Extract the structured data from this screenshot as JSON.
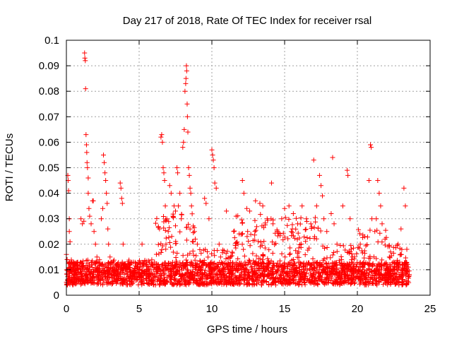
{
  "chart_data": {
    "type": "scatter",
    "title": "Day 217 of 2018, Rate Of TEC Index for receiver rsal",
    "xlabel": "GPS time / hours",
    "ylabel": "ROTI / TECUs",
    "xlim": [
      0,
      25
    ],
    "ylim": [
      0,
      0.1
    ],
    "xticks": [
      0,
      5,
      10,
      15,
      20,
      25
    ],
    "yticks": [
      0,
      0.01,
      0.02,
      0.03,
      0.04,
      0.05,
      0.06,
      0.07,
      0.08,
      0.09,
      0.1
    ],
    "xtick_labels": [
      "0",
      "5",
      "10",
      "15",
      "20",
      "25"
    ],
    "ytick_labels": [
      "0",
      "0.01",
      "0.02",
      "0.03",
      "0.04",
      "0.05",
      "0.06",
      "0.07",
      "0.08",
      "0.09",
      "0.1"
    ],
    "grid": true,
    "marker": "+",
    "color": "#ff0000",
    "series": [
      {
        "name": "ROTI",
        "points": [
          [
            0.0,
            0.016
          ],
          [
            0.05,
            0.014
          ],
          [
            0.1,
            0.047
          ],
          [
            0.12,
            0.045
          ],
          [
            0.15,
            0.041
          ],
          [
            0.2,
            0.03
          ],
          [
            0.2,
            0.025
          ],
          [
            0.25,
            0.021
          ],
          [
            0.3,
            0.011
          ],
          [
            0.5,
            0.009
          ],
          [
            0.8,
            0.01
          ],
          [
            1.0,
            0.03
          ],
          [
            1.1,
            0.028
          ],
          [
            1.2,
            0.029
          ],
          [
            1.25,
            0.095
          ],
          [
            1.27,
            0.093
          ],
          [
            1.3,
            0.092
          ],
          [
            1.32,
            0.081
          ],
          [
            1.35,
            0.063
          ],
          [
            1.38,
            0.059
          ],
          [
            1.4,
            0.056
          ],
          [
            1.42,
            0.052
          ],
          [
            1.45,
            0.05
          ],
          [
            1.5,
            0.046
          ],
          [
            1.5,
            0.04
          ],
          [
            1.55,
            0.034
          ],
          [
            1.6,
            0.031
          ],
          [
            1.7,
            0.028
          ],
          [
            1.8,
            0.037
          ],
          [
            1.85,
            0.037
          ],
          [
            1.9,
            0.025
          ],
          [
            2.0,
            0.02
          ],
          [
            2.1,
            0.015
          ],
          [
            2.4,
            0.03
          ],
          [
            2.5,
            0.034
          ],
          [
            2.55,
            0.055
          ],
          [
            2.6,
            0.052
          ],
          [
            2.65,
            0.048
          ],
          [
            2.7,
            0.045
          ],
          [
            2.75,
            0.04
          ],
          [
            2.8,
            0.036
          ],
          [
            2.85,
            0.026
          ],
          [
            2.9,
            0.02
          ],
          [
            3.0,
            0.015
          ],
          [
            3.2,
            0.01
          ],
          [
            3.6,
            0.011
          ],
          [
            3.7,
            0.044
          ],
          [
            3.75,
            0.042
          ],
          [
            3.8,
            0.038
          ],
          [
            3.85,
            0.036
          ],
          [
            3.9,
            0.02
          ],
          [
            4.0,
            0.012
          ],
          [
            4.6,
            0.013
          ],
          [
            5.2,
            0.02
          ],
          [
            5.5,
            0.01
          ],
          [
            6.0,
            0.01
          ],
          [
            6.4,
            0.026
          ],
          [
            6.5,
            0.062
          ],
          [
            6.55,
            0.063
          ],
          [
            6.6,
            0.06
          ],
          [
            6.65,
            0.05
          ],
          [
            6.7,
            0.048
          ],
          [
            6.75,
            0.045
          ],
          [
            6.8,
            0.035
          ],
          [
            6.9,
            0.03
          ],
          [
            7.0,
            0.025
          ],
          [
            7.1,
            0.043
          ],
          [
            7.2,
            0.04
          ],
          [
            7.4,
            0.035
          ],
          [
            7.5,
            0.033
          ],
          [
            7.6,
            0.05
          ],
          [
            7.65,
            0.048
          ],
          [
            7.7,
            0.035
          ],
          [
            7.8,
            0.04
          ],
          [
            7.9,
            0.03
          ],
          [
            8.0,
            0.058
          ],
          [
            8.05,
            0.06
          ],
          [
            8.1,
            0.065
          ],
          [
            8.15,
            0.08
          ],
          [
            8.2,
            0.083
          ],
          [
            8.22,
            0.085
          ],
          [
            8.25,
            0.09
          ],
          [
            8.27,
            0.088
          ],
          [
            8.3,
            0.075
          ],
          [
            8.32,
            0.07
          ],
          [
            8.35,
            0.064
          ],
          [
            8.4,
            0.05
          ],
          [
            8.45,
            0.047
          ],
          [
            8.5,
            0.042
          ],
          [
            8.55,
            0.04
          ],
          [
            8.6,
            0.035
          ],
          [
            8.8,
            0.025
          ],
          [
            9.0,
            0.02
          ],
          [
            9.5,
            0.038
          ],
          [
            9.6,
            0.036
          ],
          [
            9.8,
            0.03
          ],
          [
            10.0,
            0.057
          ],
          [
            10.05,
            0.055
          ],
          [
            10.1,
            0.053
          ],
          [
            10.15,
            0.05
          ],
          [
            10.2,
            0.044
          ],
          [
            10.3,
            0.042
          ],
          [
            10.5,
            0.02
          ],
          [
            10.6,
            0.015
          ],
          [
            11.0,
            0.033
          ],
          [
            11.5,
            0.025
          ],
          [
            11.8,
            0.02
          ],
          [
            12.1,
            0.045
          ],
          [
            12.2,
            0.04
          ],
          [
            12.4,
            0.034
          ],
          [
            12.6,
            0.033
          ],
          [
            13.0,
            0.037
          ],
          [
            13.3,
            0.036
          ],
          [
            13.5,
            0.035
          ],
          [
            13.8,
            0.03
          ],
          [
            14.1,
            0.044
          ],
          [
            14.2,
            0.028
          ],
          [
            14.5,
            0.025
          ],
          [
            14.8,
            0.03
          ],
          [
            15.0,
            0.034
          ],
          [
            15.3,
            0.035
          ],
          [
            15.6,
            0.032
          ],
          [
            15.9,
            0.028
          ],
          [
            16.2,
            0.035
          ],
          [
            16.5,
            0.03
          ],
          [
            16.8,
            0.028
          ],
          [
            17.0,
            0.053
          ],
          [
            17.2,
            0.035
          ],
          [
            17.4,
            0.047
          ],
          [
            17.5,
            0.043
          ],
          [
            17.6,
            0.039
          ],
          [
            17.7,
            0.03
          ],
          [
            17.9,
            0.025
          ],
          [
            18.2,
            0.032
          ],
          [
            18.3,
            0.054
          ],
          [
            18.4,
            0.028
          ],
          [
            18.6,
            0.02
          ],
          [
            19.0,
            0.035
          ],
          [
            19.3,
            0.049
          ],
          [
            19.35,
            0.047
          ],
          [
            19.5,
            0.03
          ],
          [
            19.8,
            0.015
          ],
          [
            20.2,
            0.02
          ],
          [
            20.5,
            0.023
          ],
          [
            20.8,
            0.045
          ],
          [
            20.9,
            0.059
          ],
          [
            20.95,
            0.058
          ],
          [
            21.0,
            0.03
          ],
          [
            21.2,
            0.025
          ],
          [
            21.3,
            0.03
          ],
          [
            21.4,
            0.045
          ],
          [
            21.5,
            0.04
          ],
          [
            21.6,
            0.035
          ],
          [
            21.7,
            0.028
          ],
          [
            21.9,
            0.022
          ],
          [
            22.2,
            0.015
          ],
          [
            22.5,
            0.013
          ],
          [
            22.8,
            0.02
          ],
          [
            23.0,
            0.026
          ],
          [
            23.2,
            0.042
          ],
          [
            23.3,
            0.035
          ],
          [
            23.4,
            0.018
          ],
          [
            23.5,
            0.011
          ]
        ],
        "dense_band": {
          "x_range": [
            0,
            23.6
          ],
          "baseline_y": [
            0.004,
            0.013
          ]
        }
      }
    ]
  }
}
